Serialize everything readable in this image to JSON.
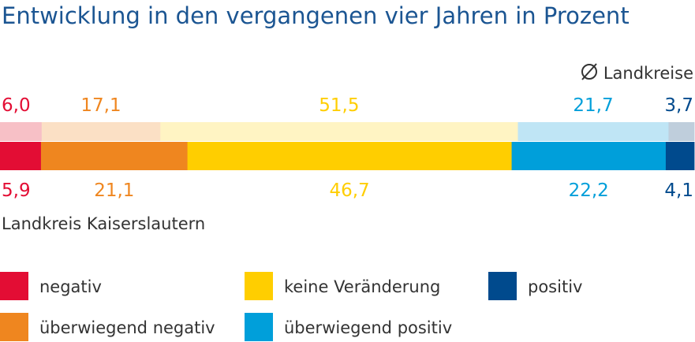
{
  "chart_data": {
    "type": "bar",
    "orientation": "horizontal-stacked-100",
    "title": "Entwicklung in den vergangenen vier Jahren in Prozent",
    "unit": "%",
    "categories": [
      "negativ",
      "überwiegend negativ",
      "keine Veränderung",
      "überwiegend positiv",
      "positiv"
    ],
    "series": [
      {
        "name": "Ø Landkreise",
        "values": [
          6.0,
          17.1,
          51.5,
          21.7,
          3.7
        ],
        "value_labels": [
          "6,0",
          "17,1",
          "51,5",
          "21,7",
          "3,7"
        ]
      },
      {
        "name": "Landkreis Kaiserslautern",
        "values": [
          5.9,
          21.1,
          46.7,
          22.2,
          4.1
        ],
        "value_labels": [
          "5,9",
          "21,1",
          "46,7",
          "22,2",
          "4,1"
        ]
      }
    ],
    "colors": {
      "strong": [
        "#e30d34",
        "#ef861f",
        "#ffce00",
        "#009fda",
        "#004a8d"
      ],
      "light": [
        "#f7c0c6",
        "#fbe0c5",
        "#fff4c3",
        "#bfe5f5",
        "#bfcedc"
      ],
      "title": "#1b5592",
      "text": "#333333"
    },
    "legend": {
      "placement": "bottom",
      "items": [
        {
          "label": "negativ"
        },
        {
          "label": "keine Veränderung"
        },
        {
          "label": "positiv"
        },
        {
          "label": "überwiegend negativ"
        },
        {
          "label": "überwiegend positiv"
        }
      ]
    }
  }
}
